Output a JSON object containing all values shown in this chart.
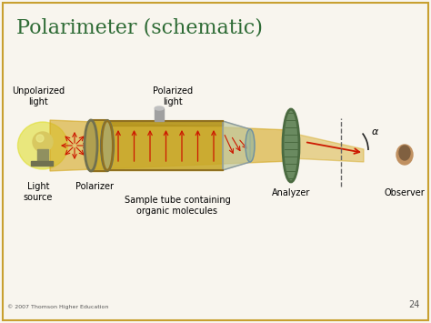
{
  "title": "Polarimeter (schematic)",
  "title_color": "#2E6B35",
  "title_fontsize": 16,
  "fig_bg": "#F8F5EE",
  "border_color": "#C8A030",
  "labels": {
    "unpolarized_light": "Unpolarized\nlight",
    "polarized_light": "Polarized\nlight",
    "light_source": "Light\nsource",
    "polarizer": "Polarizer",
    "sample_tube": "Sample tube containing\norganic molecules",
    "analyzer": "Analyzer",
    "observer": "Observer",
    "copyright": "© 2007 Thomson Higher Education",
    "page_num": "24"
  },
  "colors": {
    "beam": "#D4A820",
    "tube_body": "#C8A828",
    "tube_edge": "#907020",
    "tube_shadow": "#A88818",
    "polarizer_face": "#B0A050",
    "polarizer_metal": "#A8A880",
    "sample_tube_glass": "#C0C8A0",
    "analyzer_disk": "#6A8A60",
    "analyzer_grid": "#4A6A40",
    "red_arrow": "#CC1800",
    "bulb_glow": "#DDDD20",
    "bulb_body": "#D8C860",
    "bulb_base": "#909060",
    "dashed": "#666666",
    "alpha_color": "#222222",
    "observer_body": "#C09060"
  }
}
